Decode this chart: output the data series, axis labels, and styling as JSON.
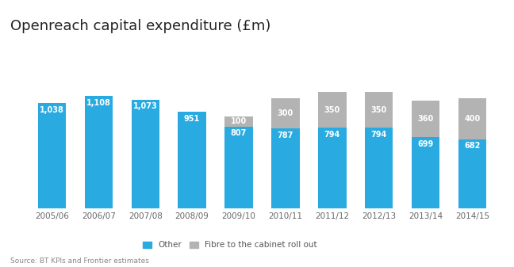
{
  "title": "Openreach capital expenditure (£m)",
  "source": "Source: BT KPIs and Frontier estimates",
  "categories": [
    "2005/06",
    "2006/07",
    "2007/08",
    "2008/09",
    "2009/10",
    "2010/11",
    "2011/12",
    "2012/13",
    "2013/14",
    "2014/15"
  ],
  "other": [
    1038,
    1108,
    1073,
    951,
    807,
    787,
    794,
    794,
    699,
    682
  ],
  "fibre": [
    0,
    0,
    0,
    0,
    100,
    300,
    350,
    350,
    360,
    400
  ],
  "other_color": "#29abe2",
  "fibre_color": "#b3b3b3",
  "background_color": "#ffffff",
  "title_fontsize": 13,
  "label_fontsize": 7,
  "tick_fontsize": 7.5,
  "source_fontsize": 6.5,
  "legend_fontsize": 7.5,
  "bar_width": 0.6,
  "ylim": [
    0,
    1580
  ]
}
